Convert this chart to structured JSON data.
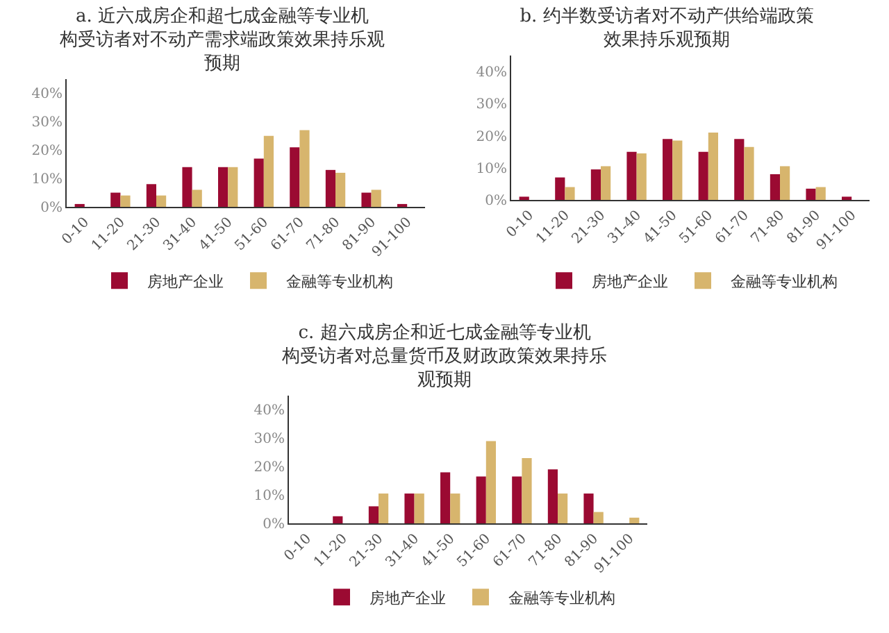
{
  "chart_data": [
    {
      "type": "bar",
      "title": "a. 近六成房企和超七成金融等专业机构受访者对不动产需求端政策效果持乐观预期",
      "categories": [
        "0-10",
        "11-20",
        "21-30",
        "31-40",
        "41-50",
        "51-60",
        "61-70",
        "71-80",
        "81-90",
        "91-100"
      ],
      "series": [
        {
          "name": "房地产企业",
          "color": "#9b0a32",
          "values": [
            1,
            5,
            8,
            14,
            14,
            17,
            21,
            13,
            5,
            1
          ]
        },
        {
          "name": "金融等专业机构",
          "color": "#d7b56d",
          "values": [
            0,
            4,
            4,
            6,
            14,
            25,
            27,
            12,
            6,
            0
          ]
        }
      ],
      "ylim": [
        0,
        45
      ],
      "yticks": [
        {
          "value": 0,
          "label": "0%"
        },
        {
          "value": 10,
          "label": "10%"
        },
        {
          "value": 20,
          "label": "20%"
        },
        {
          "value": 30,
          "label": "30%"
        },
        {
          "value": 40,
          "label": "40%"
        }
      ],
      "grid": false,
      "legend": "bottom"
    },
    {
      "type": "bar",
      "title": "b. 约半数受访者对不动产供给端政策效果持乐观预期",
      "categories": [
        "0-10",
        "11-20",
        "21-30",
        "31-40",
        "41-50",
        "51-60",
        "61-70",
        "71-80",
        "81-90",
        "91-100"
      ],
      "series": [
        {
          "name": "房地产企业",
          "color": "#9b0a32",
          "values": [
            1,
            7,
            9.5,
            15,
            19,
            15,
            19,
            8,
            3.5,
            1
          ]
        },
        {
          "name": "金融等专业机构",
          "color": "#d7b56d",
          "values": [
            0,
            4,
            10.5,
            14.5,
            18.5,
            21,
            16.5,
            10.5,
            4,
            0
          ]
        }
      ],
      "ylim": [
        0,
        45
      ],
      "yticks": [
        {
          "value": 0,
          "label": "0%"
        },
        {
          "value": 10,
          "label": "10%"
        },
        {
          "value": 20,
          "label": "20%"
        },
        {
          "value": 30,
          "label": "30%"
        },
        {
          "value": 40,
          "label": "40%"
        }
      ],
      "grid": false,
      "legend": "bottom"
    },
    {
      "type": "bar",
      "title": "c. 超六成房企和近七成金融等专业机构受访者对总量货币及财政政策效果持乐观预期",
      "categories": [
        "0-10",
        "11-20",
        "21-30",
        "31-40",
        "41-50",
        "51-60",
        "61-70",
        "71-80",
        "81-90",
        "91-100"
      ],
      "series": [
        {
          "name": "房地产企业",
          "color": "#9b0a32",
          "values": [
            0,
            2.5,
            6,
            10.5,
            18,
            16.5,
            16.5,
            19,
            10.5,
            0
          ]
        },
        {
          "name": "金融等专业机构",
          "color": "#d7b56d",
          "values": [
            0,
            0,
            10.5,
            10.5,
            10.5,
            29,
            23,
            10.5,
            4,
            2
          ]
        }
      ],
      "ylim": [
        0,
        45
      ],
      "yticks": [
        {
          "value": 0,
          "label": "0%"
        },
        {
          "value": 10,
          "label": "10%"
        },
        {
          "value": 20,
          "label": "20%"
        },
        {
          "value": 30,
          "label": "30%"
        },
        {
          "value": 40,
          "label": "40%"
        }
      ],
      "grid": false,
      "legend": "bottom"
    }
  ]
}
